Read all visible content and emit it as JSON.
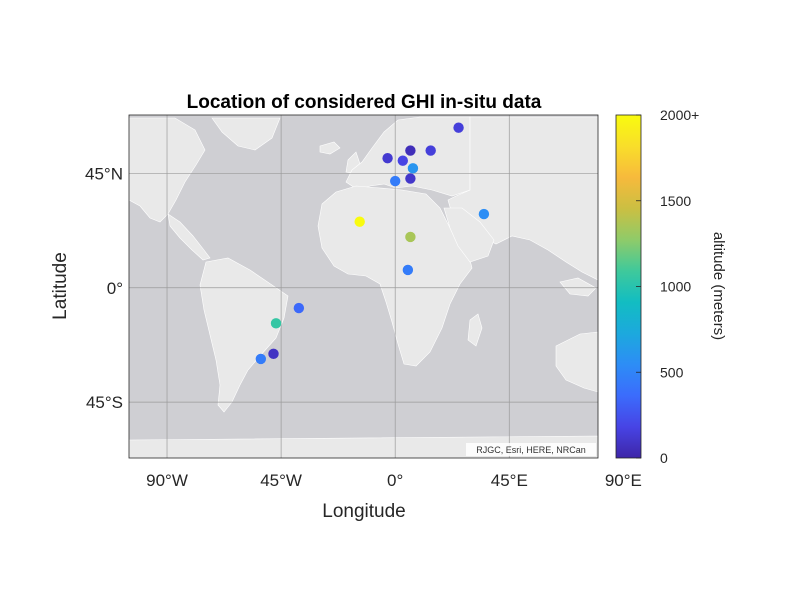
{
  "title": "Location of considered GHI in-situ data",
  "x_axis": {
    "label": "Longitude",
    "ticks": [
      {
        "value": -90,
        "label": "90°W"
      },
      {
        "value": -45,
        "label": "45°W"
      },
      {
        "value": 0,
        "label": "0°"
      },
      {
        "value": 45,
        "label": "45°E"
      },
      {
        "value": 90,
        "label": "90°E"
      }
    ]
  },
  "y_axis": {
    "label": "Latitude",
    "ticks": [
      {
        "value": 45,
        "label": "45°N"
      },
      {
        "value": 0,
        "label": "0°"
      },
      {
        "value": -45,
        "label": "45°S"
      }
    ]
  },
  "attribution": "RJGC, Esri, HERE, NRCan",
  "colorbar": {
    "label": "altitude (meters)",
    "ticks": [
      {
        "value": 2000,
        "label": "2000+"
      },
      {
        "value": 1500,
        "label": "1500"
      },
      {
        "value": 1000,
        "label": "1000"
      },
      {
        "value": 500,
        "label": "500"
      },
      {
        "value": 0,
        "label": "0"
      }
    ],
    "colormap": [
      "#3e26a8",
      "#4744e5",
      "#3b6cfc",
      "#2d8df6",
      "#1ca9dd",
      "#12bdc2",
      "#3fc99b",
      "#8fcb69",
      "#cbbf42",
      "#f7ba3c",
      "#f9de2a",
      "#f9fb0e"
    ]
  },
  "chart_data": {
    "type": "scatter",
    "title": "Location of considered GHI in-situ data",
    "xlabel": "Longitude",
    "ylabel": "Latitude",
    "xlim": [
      -105,
      80
    ],
    "ylim": [
      -67,
      68
    ],
    "color_variable": "altitude (meters)",
    "clim": [
      0,
      2000
    ],
    "points": [
      {
        "lon": 25,
        "lat": 63,
        "altitude": 150
      },
      {
        "lon": 14,
        "lat": 54,
        "altitude": 150
      },
      {
        "lon": 6,
        "lat": 54,
        "altitude": 50
      },
      {
        "lon": -3,
        "lat": 51,
        "altitude": 120
      },
      {
        "lon": 3,
        "lat": 50,
        "altitude": 180
      },
      {
        "lon": 7,
        "lat": 47,
        "altitude": 600
      },
      {
        "lon": 6,
        "lat": 43,
        "altitude": 100
      },
      {
        "lon": 0,
        "lat": 42,
        "altitude": 450
      },
      {
        "lon": 35,
        "lat": 29,
        "altitude": 550
      },
      {
        "lon": -14,
        "lat": 26,
        "altitude": 2000
      },
      {
        "lon": 6,
        "lat": 20,
        "altitude": 1350
      },
      {
        "lon": 5,
        "lat": 7,
        "altitude": 450
      },
      {
        "lon": -38,
        "lat": -8,
        "altitude": 350
      },
      {
        "lon": -47,
        "lat": -14,
        "altitude": 1050
      },
      {
        "lon": -48,
        "lat": -26,
        "altitude": 80
      },
      {
        "lon": -53,
        "lat": -28,
        "altitude": 450
      }
    ]
  }
}
